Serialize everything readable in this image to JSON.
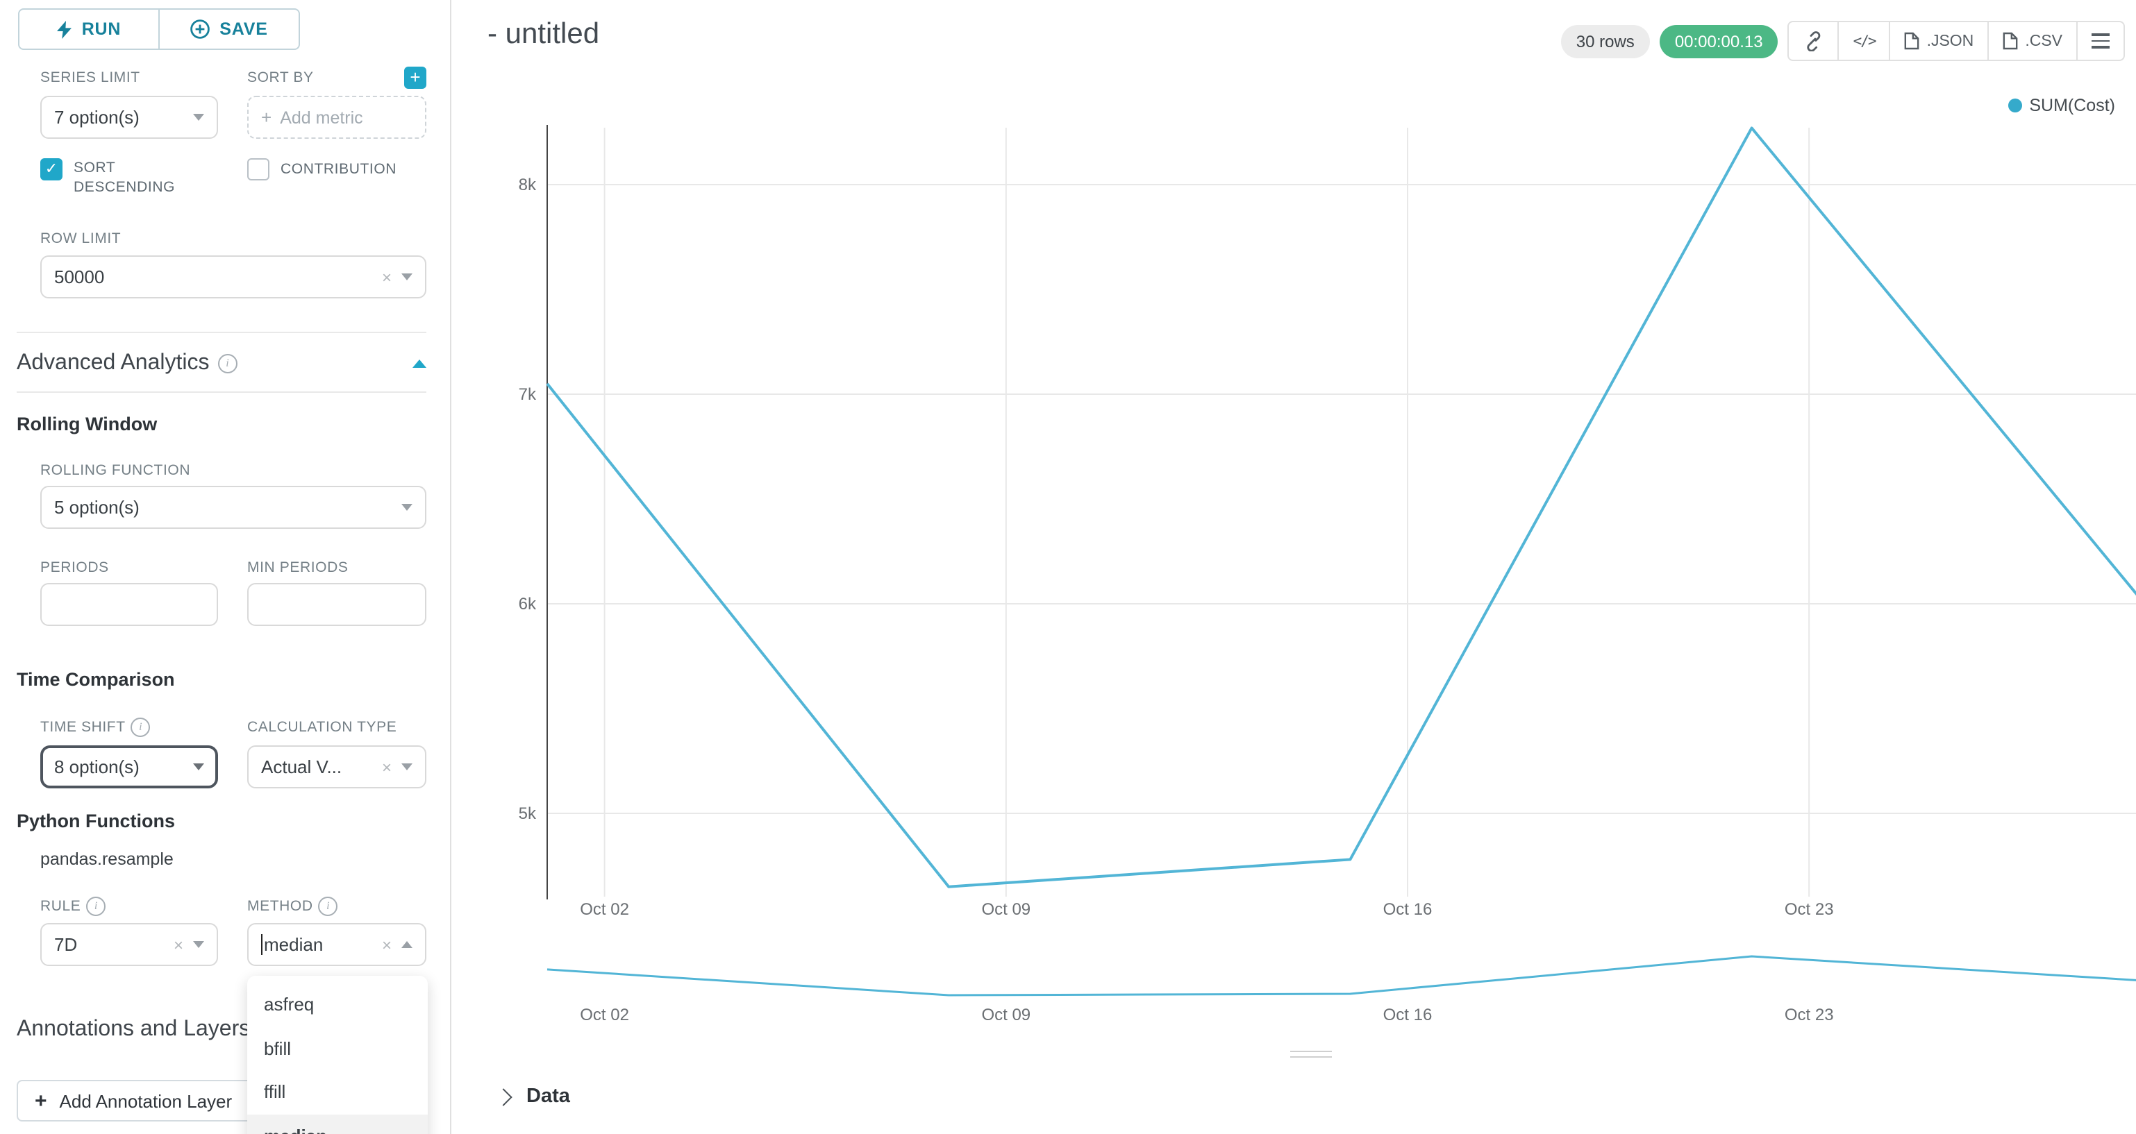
{
  "colors": {
    "primary_teal": "#20a7c9",
    "button_text": "#17819b",
    "series_line": "#52b5d6",
    "timer_badge_bg": "#4cb885",
    "rows_badge_bg": "#ececec"
  },
  "toolbar": {
    "run_label": "RUN",
    "save_label": "SAVE"
  },
  "control_panel": {
    "series_limit_label": "SERIES LIMIT",
    "series_limit_value": "7 option(s)",
    "sort_by_label": "SORT BY",
    "sort_by_placeholder": "Add metric",
    "sort_descending_label": "SORT DESCENDING",
    "sort_descending_checked": true,
    "contribution_label": "CONTRIBUTION",
    "contribution_checked": false,
    "row_limit_label": "ROW LIMIT",
    "row_limit_value": "50000",
    "advanced_analytics_title": "Advanced Analytics",
    "rolling_window_title": "Rolling Window",
    "rolling_function_label": "ROLLING FUNCTION",
    "rolling_function_value": "5 option(s)",
    "periods_label": "PERIODS",
    "min_periods_label": "MIN PERIODS",
    "time_comparison_title": "Time Comparison",
    "time_shift_label": "TIME SHIFT",
    "time_shift_value": "8 option(s)",
    "calculation_type_label": "CALCULATION TYPE",
    "calculation_type_value": "Actual V...",
    "python_functions_title": "Python Functions",
    "python_functions_subtitle": "pandas.resample",
    "rule_label": "RULE",
    "rule_value": "7D",
    "method_label": "METHOD",
    "method_value": "median",
    "method_options": [
      "asfreq",
      "bfill",
      "ffill",
      "median"
    ],
    "method_selected": "median",
    "annotations_title": "Annotations and Layers",
    "add_annotation_label": "Add Annotation Layer"
  },
  "header": {
    "title": "- untitled",
    "rows_badge": "30 rows",
    "timer_badge": "00:00:00.13",
    "json_label": ".JSON",
    "csv_label": ".CSV"
  },
  "icons": {
    "run": "bolt-icon",
    "save": "plus-circle-icon",
    "sort_by_add": "plus-icon",
    "share": "link-icon",
    "embed": "code-icon",
    "downloads": "file-icon",
    "more": "menu-icon",
    "collapse": "chevron-up-icon",
    "data_expand": "chevron-right-icon"
  },
  "chart_data": {
    "type": "line",
    "title": "- untitled",
    "legend": [
      "SUM(Cost)"
    ],
    "legend_position": "top-right",
    "grid": true,
    "series_color": "#52b5d6",
    "ylim": [
      4500,
      8500
    ],
    "series": [
      {
        "name": "SUM(Cost)",
        "x_days": [
          0,
          7,
          14,
          21,
          28
        ],
        "values": [
          7050,
          4650,
          4780,
          8270,
          5950
        ]
      }
    ],
    "x_ticks": [
      {
        "day": 1,
        "label": "Oct 02"
      },
      {
        "day": 8,
        "label": "Oct 09"
      },
      {
        "day": 15,
        "label": "Oct 16"
      },
      {
        "day": 22,
        "label": "Oct 23"
      }
    ],
    "y_ticks": [
      {
        "value": 5000,
        "label": "5k"
      },
      {
        "value": 6000,
        "label": "6k"
      },
      {
        "value": 7000,
        "label": "7k"
      },
      {
        "value": 8000,
        "label": "8k"
      }
    ],
    "mini_preview": true
  },
  "data_panel": {
    "title": "Data"
  }
}
